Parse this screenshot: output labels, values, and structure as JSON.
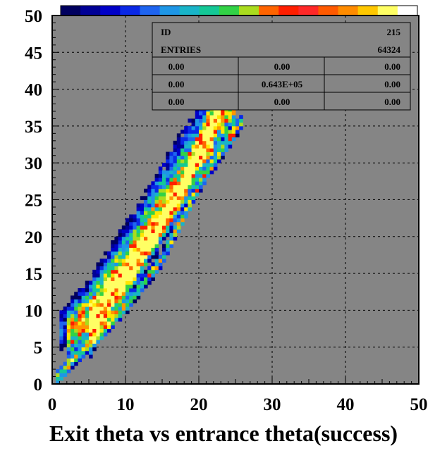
{
  "chart_data": {
    "type": "heatmap",
    "title": "Exit theta vs entrance theta(success)",
    "xlabel": "",
    "ylabel": "",
    "xlim": [
      0,
      50
    ],
    "ylim": [
      0,
      50
    ],
    "x_ticks": [
      "0",
      "10",
      "20",
      "30",
      "40",
      "50"
    ],
    "y_ticks": [
      "0",
      "5",
      "10",
      "15",
      "20",
      "25",
      "30",
      "35",
      "40",
      "45",
      "50"
    ],
    "grid": true,
    "background_color": "#858585",
    "colorbar": [
      "#00005f",
      "#000096",
      "#0000c8",
      "#0a28e6",
      "#1e64f0",
      "#1e96e6",
      "#19b4c8",
      "#14c896",
      "#32d246",
      "#aadc1e",
      "#ff6400",
      "#ff1e00",
      "#ff2828",
      "#ff5a00",
      "#ff8c00",
      "#ffc800",
      "#ffff64",
      "#ffffff"
    ],
    "bin_size": 0.5,
    "bands": [
      {
        "points": [
          [
            0.5,
            0.7
          ],
          [
            5,
            5.5
          ],
          [
            10,
            10.5
          ],
          [
            15,
            17
          ],
          [
            20,
            27
          ],
          [
            24,
            33
          ],
          [
            26,
            36
          ]
        ],
        "width": 0.6,
        "peak": 0.6
      },
      {
        "points": [
          [
            5,
            5
          ],
          [
            10,
            13
          ],
          [
            15,
            21
          ],
          [
            20,
            30
          ],
          [
            22,
            33
          ]
        ],
        "width": 1.0,
        "peak": 0.45
      },
      {
        "points": [
          [
            5,
            8
          ],
          [
            10,
            15
          ],
          [
            15,
            22
          ],
          [
            18,
            27
          ],
          [
            20,
            32
          ],
          [
            23,
            38
          ],
          [
            25,
            40
          ]
        ],
        "width": 1.2,
        "peak": 0.9
      },
      {
        "points": [
          [
            2,
            6
          ],
          [
            5,
            9
          ],
          [
            10,
            16
          ],
          [
            15,
            24
          ],
          [
            20,
            31
          ],
          [
            25,
            38
          ]
        ],
        "width": 2.0,
        "peak": 0.55
      },
      {
        "points": [
          [
            1,
            7
          ],
          [
            5,
            11
          ],
          [
            10,
            19
          ],
          [
            15,
            27
          ],
          [
            20,
            35
          ],
          [
            25,
            41
          ]
        ],
        "width": 2.2,
        "peak": 0.25
      }
    ],
    "stats_box": {
      "id_label": "ID",
      "id_value": "215",
      "entries_label": "ENTRIES",
      "entries_value": "64324",
      "rows": [
        [
          "0.00",
          "0.00",
          "0.00"
        ],
        [
          "0.00",
          "0.643E+05",
          "0.00"
        ],
        [
          "0.00",
          "0.00",
          "0.00"
        ]
      ]
    }
  }
}
